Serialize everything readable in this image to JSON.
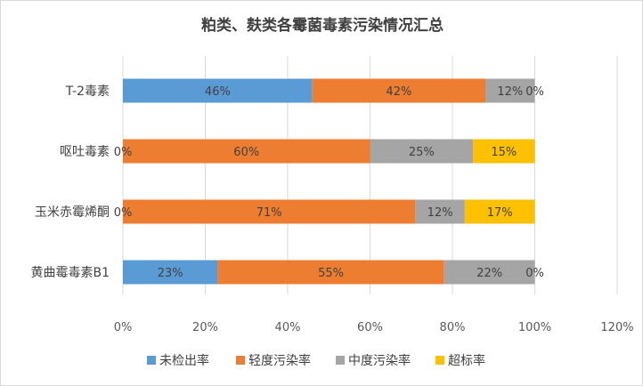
{
  "chart_data": {
    "type": "bar",
    "orientation": "horizontal",
    "stacked": true,
    "title": "粕类、麸类各霉菌毒素污染情况汇总",
    "categories": [
      "T-2毒素",
      "呕吐毒素",
      "玉米赤霉烯酮",
      "黄曲霉毒素B1"
    ],
    "series": [
      {
        "name": "未检出率",
        "color": "#5b9bd5",
        "values": [
          46,
          0,
          0,
          23
        ],
        "labels": [
          "46%",
          "0%",
          "0%",
          "23%"
        ]
      },
      {
        "name": "轻度污染率",
        "color": "#ed7d31",
        "values": [
          42,
          60,
          71,
          55
        ],
        "labels": [
          "42%",
          "60%",
          "71%",
          "55%"
        ]
      },
      {
        "name": "中度污染率",
        "color": "#a5a5a5",
        "values": [
          12,
          25,
          12,
          22
        ],
        "labels": [
          "12%",
          "25%",
          "12%",
          "22%"
        ]
      },
      {
        "name": "超标率",
        "color": "#ffc000",
        "values": [
          0,
          15,
          17,
          0
        ],
        "labels": [
          "0%",
          "15%",
          "17%",
          "0%"
        ]
      }
    ],
    "xlim": [
      0,
      120
    ],
    "xticks": [
      "0%",
      "20%",
      "40%",
      "60%",
      "80%",
      "100%",
      "120%"
    ],
    "grid": true,
    "legend_position": "bottom"
  }
}
